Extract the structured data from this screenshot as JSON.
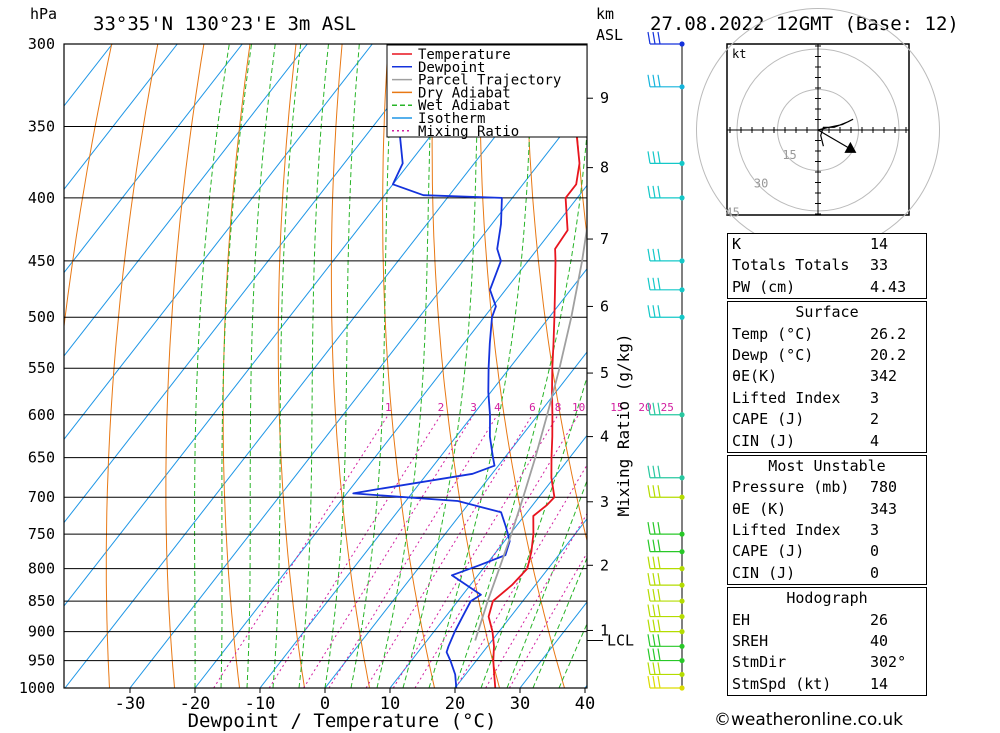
{
  "header": {
    "pressure_unit": "hPa",
    "location": "33°35'N  130°23'E  3m  ASL",
    "km_label": "km",
    "asl_label": "ASL",
    "datetime": "27.08.2022  12GMT  (Base: 12)"
  },
  "chart_data": {
    "type": "skew-t",
    "xlabel": "Dewpoint / Temperature (°C)",
    "ylabel": "hPa",
    "mixing_ratio_axis_label": "Mixing Ratio (g/kg)",
    "xlim": [
      -40,
      40
    ],
    "ylim_hpa": [
      1000,
      300
    ],
    "x_ticks": [
      -30,
      -20,
      -10,
      0,
      10,
      20,
      30,
      40
    ],
    "pressure_levels": [
      300,
      350,
      400,
      450,
      500,
      550,
      600,
      650,
      700,
      750,
      800,
      850,
      900,
      950,
      1000
    ],
    "height_ticks_km": [
      {
        "label": "1",
        "hpa": 898
      },
      {
        "label": "2",
        "hpa": 795
      },
      {
        "label": "3",
        "hpa": 706
      },
      {
        "label": "4",
        "hpa": 625
      },
      {
        "label": "5",
        "hpa": 555
      },
      {
        "label": "6",
        "hpa": 490
      },
      {
        "label": "7",
        "hpa": 432
      },
      {
        "label": "8",
        "hpa": 378
      },
      {
        "label": "9",
        "hpa": 332
      }
    ],
    "lcl": {
      "label": "LCL",
      "hpa": 915
    },
    "mixing_ratio_labels": [
      "1",
      "2",
      "3",
      "4",
      "6",
      "8",
      "10",
      "15",
      "20",
      "25"
    ],
    "mixing_ratio_values": [
      1,
      2,
      3,
      4,
      6,
      8,
      10,
      15,
      20,
      25
    ],
    "legend": [
      {
        "name": "Temperature",
        "color": "#e8141e"
      },
      {
        "name": "Dewpoint",
        "color": "#1432dc"
      },
      {
        "name": "Parcel Trajectory",
        "color": "#a0a0a0"
      },
      {
        "name": "Dry Adiabat",
        "color": "#e87814"
      },
      {
        "name": "Wet Adiabat",
        "color": "#28b428"
      },
      {
        "name": "Isotherm",
        "color": "#1e96e6"
      },
      {
        "name": "Mixing Ratio",
        "color": "#d21ea0"
      }
    ],
    "series": [
      {
        "name": "Temperature",
        "points": [
          [
            1000,
            26.2
          ],
          [
            975,
            24.4
          ],
          [
            950,
            22.6
          ],
          [
            925,
            21.0
          ],
          [
            900,
            19.0
          ],
          [
            875,
            16.6
          ],
          [
            850,
            15.4
          ],
          [
            825,
            16.4
          ],
          [
            800,
            16.8
          ],
          [
            775,
            15.4
          ],
          [
            750,
            13.6
          ],
          [
            725,
            11.4
          ],
          [
            710,
            12.2
          ],
          [
            700,
            12.4
          ],
          [
            675,
            9.6
          ],
          [
            650,
            7.2
          ],
          [
            625,
            4.8
          ],
          [
            600,
            2.2
          ],
          [
            575,
            -0.6
          ],
          [
            550,
            -3.4
          ],
          [
            525,
            -6.2
          ],
          [
            500,
            -9.2
          ],
          [
            475,
            -12.4
          ],
          [
            450,
            -15.8
          ],
          [
            440,
            -17.3
          ],
          [
            425,
            -17.6
          ],
          [
            400,
            -21.8
          ],
          [
            390,
            -21.8
          ],
          [
            375,
            -23.8
          ],
          [
            350,
            -28.8
          ],
          [
            325,
            -33.8
          ],
          [
            310,
            -37.0
          ],
          [
            300,
            -39.4
          ]
        ]
      },
      {
        "name": "Dewpoint",
        "points": [
          [
            1000,
            20.2
          ],
          [
            975,
            18.4
          ],
          [
            950,
            16.0
          ],
          [
            935,
            14.4
          ],
          [
            925,
            14.0
          ],
          [
            900,
            13.2
          ],
          [
            875,
            12.6
          ],
          [
            850,
            12.0
          ],
          [
            840,
            12.8
          ],
          [
            810,
            6.0
          ],
          [
            795,
            9.0
          ],
          [
            780,
            11.8
          ],
          [
            760,
            10.8
          ],
          [
            740,
            8.5
          ],
          [
            720,
            6.0
          ],
          [
            705,
            -2.0
          ],
          [
            695,
            -19.0
          ],
          [
            690,
            -16.0
          ],
          [
            670,
            -3.0
          ],
          [
            660,
            -0.6
          ],
          [
            650,
            -1.8
          ],
          [
            625,
            -4.8
          ],
          [
            600,
            -7.4
          ],
          [
            575,
            -10.4
          ],
          [
            550,
            -13.2
          ],
          [
            525,
            -16.0
          ],
          [
            500,
            -18.8
          ],
          [
            490,
            -19.5
          ],
          [
            475,
            -22.4
          ],
          [
            450,
            -24.2
          ],
          [
            440,
            -26.2
          ],
          [
            420,
            -28.6
          ],
          [
            400,
            -31.6
          ],
          [
            398,
            -44.0
          ],
          [
            390,
            -50.0
          ],
          [
            375,
            -51.0
          ],
          [
            350,
            -56.0
          ],
          [
            325,
            -60.0
          ],
          [
            300,
            -64.0
          ]
        ]
      },
      {
        "name": "Parcel Trajectory",
        "points": [
          [
            915,
            17.4
          ],
          [
            850,
            14.6
          ],
          [
            800,
            12.5
          ],
          [
            750,
            10.2
          ],
          [
            700,
            7.6
          ],
          [
            650,
            4.7
          ],
          [
            600,
            1.4
          ],
          [
            550,
            -2.3
          ],
          [
            500,
            -6.6
          ],
          [
            450,
            -11.7
          ],
          [
            400,
            -17.8
          ],
          [
            350,
            -25.4
          ],
          [
            300,
            -35.0
          ]
        ]
      }
    ],
    "hodograph_title": "kt",
    "hodograph_rings_kt": [
      15,
      30,
      45
    ],
    "hodograph_ring_labels": [
      "15",
      "30",
      "45"
    ],
    "hodograph_path_kt": [
      [
        0,
        0
      ],
      [
        4,
        1
      ],
      [
        9,
        2
      ],
      [
        13,
        4
      ],
      [
        11,
        3
      ],
      [
        6,
        1
      ],
      [
        2,
        1
      ],
      [
        1,
        -2
      ],
      [
        2,
        -6
      ]
    ],
    "storm_motion_kt": [
      12,
      7
    ],
    "wind_barb_hpa": [
      1000,
      975,
      950,
      925,
      900,
      875,
      850,
      825,
      800,
      775,
      750,
      700,
      675,
      600,
      500,
      475,
      450,
      400,
      375,
      325,
      300
    ],
    "wind_barb_colors": [
      "#dcdc00",
      "#b4dc00",
      "#28c828",
      "#28c828",
      "#b4dc00",
      "#b4dc00",
      "#b4dc00",
      "#b4dc00",
      "#b4dc00",
      "#28c828",
      "#28c828",
      "#b4dc00",
      "#28c8a0",
      "#28c8a0",
      "#14c8c8",
      "#14c8c8",
      "#14c8c8",
      "#14c8c8",
      "#14c8c8",
      "#14b4dc",
      "#1432dc"
    ]
  },
  "indices": {
    "general": [
      {
        "label": "K",
        "value": "14"
      },
      {
        "label": "Totals Totals",
        "value": "33"
      },
      {
        "label": "PW (cm)",
        "value": "4.43"
      }
    ],
    "surface_title": "Surface",
    "surface": [
      {
        "label": "Temp (°C)",
        "value": "26.2"
      },
      {
        "label": "Dewp (°C)",
        "value": "20.2"
      },
      {
        "label": "θE(K)",
        "value": "342"
      },
      {
        "label": "Lifted Index",
        "value": "3"
      },
      {
        "label": "CAPE (J)",
        "value": "2"
      },
      {
        "label": "CIN (J)",
        "value": "4"
      }
    ],
    "unstable_title": "Most Unstable",
    "unstable": [
      {
        "label": "Pressure (mb)",
        "value": "780"
      },
      {
        "label": "θE (K)",
        "value": "343"
      },
      {
        "label": "Lifted Index",
        "value": "3"
      },
      {
        "label": "CAPE (J)",
        "value": "0"
      },
      {
        "label": "CIN (J)",
        "value": "0"
      }
    ],
    "hodo_title": "Hodograph",
    "hodo": [
      {
        "label": "EH",
        "value": "26"
      },
      {
        "label": "SREH",
        "value": "40"
      },
      {
        "label": "StmDir",
        "value": "302°"
      },
      {
        "label": "StmSpd (kt)",
        "value": "14"
      }
    ]
  },
  "credit": "©weatheronline.co.uk"
}
